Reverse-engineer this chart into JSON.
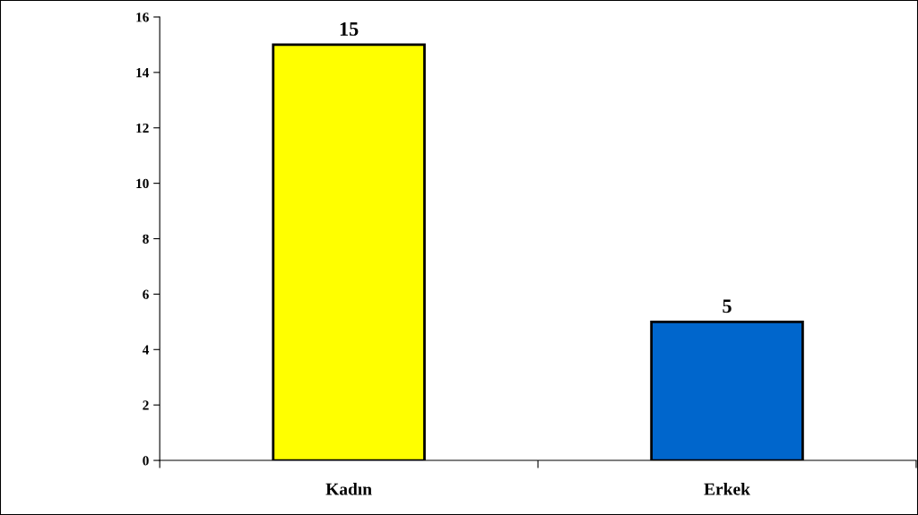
{
  "chart_data": {
    "type": "bar",
    "categories": [
      "Kadın",
      "Erkek"
    ],
    "values": [
      15,
      5
    ],
    "colors": [
      "#ffff00",
      "#0066cc"
    ],
    "ylim": [
      0,
      16
    ],
    "yticks": [
      0,
      2,
      4,
      6,
      8,
      10,
      12,
      14,
      16
    ],
    "data_labels": true,
    "grid": false,
    "legend": false
  }
}
